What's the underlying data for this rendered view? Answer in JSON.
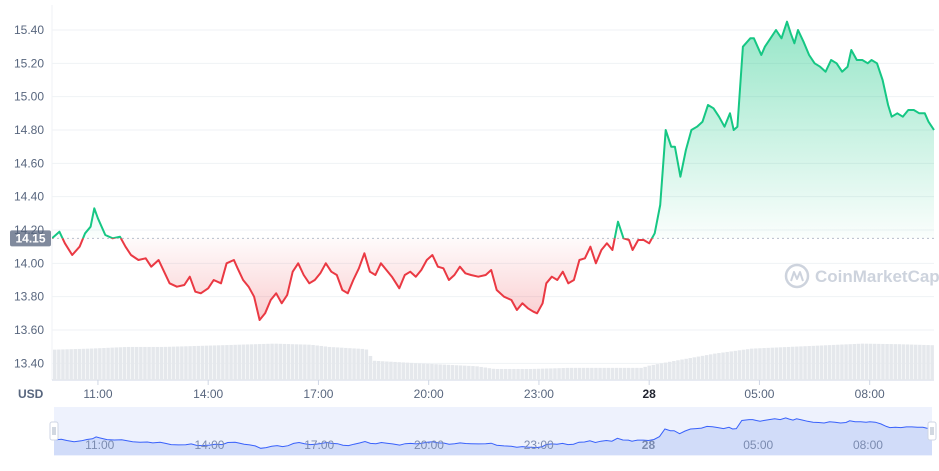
{
  "chart_data": {
    "type": "area",
    "currency_label": "USD",
    "reference": {
      "value": 14.15,
      "label": "14.15"
    },
    "ylim": [
      13.3,
      15.55
    ],
    "y_ticks": [
      "15.40",
      "15.20",
      "15.00",
      "14.80",
      "14.60",
      "14.40",
      "14.20",
      "14.00",
      "13.80",
      "13.60",
      "13.40"
    ],
    "x_ticks": [
      {
        "t": 1.25,
        "label": "11:00",
        "bold": false
      },
      {
        "t": 4.25,
        "label": "14:00",
        "bold": false
      },
      {
        "t": 7.25,
        "label": "17:00",
        "bold": false
      },
      {
        "t": 10.25,
        "label": "20:00",
        "bold": false
      },
      {
        "t": 13.25,
        "label": "23:00",
        "bold": false
      },
      {
        "t": 16.25,
        "label": "28",
        "bold": true
      },
      {
        "t": 19.25,
        "label": "05:00",
        "bold": false
      },
      {
        "t": 22.25,
        "label": "08:00",
        "bold": false
      }
    ],
    "x_range": [
      0,
      24.0
    ],
    "price": [
      [
        0.0,
        14.15
      ],
      [
        0.2,
        14.19
      ],
      [
        0.35,
        14.12
      ],
      [
        0.55,
        14.05
      ],
      [
        0.75,
        14.1
      ],
      [
        0.9,
        14.18
      ],
      [
        1.05,
        14.22
      ],
      [
        1.15,
        14.33
      ],
      [
        1.25,
        14.27
      ],
      [
        1.45,
        14.17
      ],
      [
        1.65,
        14.15
      ],
      [
        1.85,
        14.16
      ],
      [
        2.0,
        14.1
      ],
      [
        2.15,
        14.05
      ],
      [
        2.35,
        14.02
      ],
      [
        2.55,
        14.03
      ],
      [
        2.7,
        13.98
      ],
      [
        2.9,
        14.02
      ],
      [
        3.05,
        13.95
      ],
      [
        3.2,
        13.88
      ],
      [
        3.4,
        13.86
      ],
      [
        3.6,
        13.87
      ],
      [
        3.75,
        13.92
      ],
      [
        3.9,
        13.83
      ],
      [
        4.05,
        13.82
      ],
      [
        4.25,
        13.85
      ],
      [
        4.4,
        13.9
      ],
      [
        4.6,
        13.88
      ],
      [
        4.75,
        14.0
      ],
      [
        4.95,
        14.02
      ],
      [
        5.05,
        13.97
      ],
      [
        5.2,
        13.9
      ],
      [
        5.35,
        13.86
      ],
      [
        5.5,
        13.8
      ],
      [
        5.65,
        13.66
      ],
      [
        5.8,
        13.7
      ],
      [
        5.95,
        13.78
      ],
      [
        6.1,
        13.82
      ],
      [
        6.25,
        13.76
      ],
      [
        6.4,
        13.81
      ],
      [
        6.55,
        13.95
      ],
      [
        6.7,
        14.0
      ],
      [
        6.85,
        13.93
      ],
      [
        7.0,
        13.88
      ],
      [
        7.15,
        13.9
      ],
      [
        7.3,
        13.94
      ],
      [
        7.45,
        14.0
      ],
      [
        7.6,
        13.95
      ],
      [
        7.75,
        13.93
      ],
      [
        7.9,
        13.84
      ],
      [
        8.05,
        13.82
      ],
      [
        8.2,
        13.9
      ],
      [
        8.35,
        13.97
      ],
      [
        8.5,
        14.06
      ],
      [
        8.65,
        13.95
      ],
      [
        8.8,
        13.93
      ],
      [
        8.95,
        14.0
      ],
      [
        9.1,
        13.96
      ],
      [
        9.25,
        13.92
      ],
      [
        9.45,
        13.85
      ],
      [
        9.6,
        13.93
      ],
      [
        9.75,
        13.95
      ],
      [
        9.9,
        13.92
      ],
      [
        10.05,
        13.96
      ],
      [
        10.2,
        14.02
      ],
      [
        10.35,
        14.05
      ],
      [
        10.5,
        13.98
      ],
      [
        10.65,
        13.97
      ],
      [
        10.8,
        13.9
      ],
      [
        10.95,
        13.93
      ],
      [
        11.1,
        13.98
      ],
      [
        11.25,
        13.94
      ],
      [
        11.4,
        13.93
      ],
      [
        11.6,
        13.92
      ],
      [
        11.8,
        13.93
      ],
      [
        11.95,
        13.96
      ],
      [
        12.1,
        13.84
      ],
      [
        12.3,
        13.8
      ],
      [
        12.5,
        13.78
      ],
      [
        12.65,
        13.72
      ],
      [
        12.8,
        13.76
      ],
      [
        12.95,
        13.73
      ],
      [
        13.1,
        13.71
      ],
      [
        13.2,
        13.7
      ],
      [
        13.35,
        13.76
      ],
      [
        13.45,
        13.88
      ],
      [
        13.6,
        13.92
      ],
      [
        13.75,
        13.9
      ],
      [
        13.9,
        13.95
      ],
      [
        14.05,
        13.88
      ],
      [
        14.2,
        13.9
      ],
      [
        14.35,
        14.02
      ],
      [
        14.5,
        14.03
      ],
      [
        14.65,
        14.1
      ],
      [
        14.8,
        14.0
      ],
      [
        14.95,
        14.08
      ],
      [
        15.1,
        14.12
      ],
      [
        15.25,
        14.08
      ],
      [
        15.4,
        14.25
      ],
      [
        15.55,
        14.15
      ],
      [
        15.7,
        14.14
      ],
      [
        15.8,
        14.08
      ],
      [
        15.95,
        14.14
      ],
      [
        16.1,
        14.14
      ],
      [
        16.25,
        14.12
      ],
      [
        16.4,
        14.18
      ],
      [
        16.55,
        14.35
      ],
      [
        16.7,
        14.8
      ],
      [
        16.85,
        14.7
      ],
      [
        16.95,
        14.7
      ],
      [
        17.1,
        14.52
      ],
      [
        17.25,
        14.68
      ],
      [
        17.4,
        14.8
      ],
      [
        17.55,
        14.82
      ],
      [
        17.7,
        14.85
      ],
      [
        17.85,
        14.95
      ],
      [
        18.0,
        14.93
      ],
      [
        18.15,
        14.88
      ],
      [
        18.3,
        14.82
      ],
      [
        18.45,
        14.9
      ],
      [
        18.55,
        14.8
      ],
      [
        18.65,
        14.82
      ],
      [
        18.8,
        15.3
      ],
      [
        19.0,
        15.35
      ],
      [
        19.1,
        15.35
      ],
      [
        19.2,
        15.3
      ],
      [
        19.3,
        15.25
      ],
      [
        19.4,
        15.3
      ],
      [
        19.55,
        15.35
      ],
      [
        19.7,
        15.4
      ],
      [
        19.85,
        15.35
      ],
      [
        20.0,
        15.45
      ],
      [
        20.1,
        15.38
      ],
      [
        20.2,
        15.32
      ],
      [
        20.3,
        15.4
      ],
      [
        20.45,
        15.33
      ],
      [
        20.6,
        15.25
      ],
      [
        20.75,
        15.2
      ],
      [
        20.9,
        15.18
      ],
      [
        21.05,
        15.15
      ],
      [
        21.2,
        15.22
      ],
      [
        21.35,
        15.2
      ],
      [
        21.5,
        15.15
      ],
      [
        21.65,
        15.18
      ],
      [
        21.75,
        15.28
      ],
      [
        21.9,
        15.22
      ],
      [
        22.05,
        15.22
      ],
      [
        22.2,
        15.2
      ],
      [
        22.3,
        15.22
      ],
      [
        22.45,
        15.2
      ],
      [
        22.6,
        15.1
      ],
      [
        22.75,
        14.95
      ],
      [
        22.85,
        14.88
      ],
      [
        23.0,
        14.9
      ],
      [
        23.15,
        14.88
      ],
      [
        23.3,
        14.92
      ],
      [
        23.45,
        14.92
      ],
      [
        23.6,
        14.9
      ],
      [
        23.75,
        14.9
      ],
      [
        23.85,
        14.85
      ],
      [
        24.0,
        14.8
      ]
    ],
    "volume": [
      [
        0.0,
        0.55
      ],
      [
        1.0,
        0.57
      ],
      [
        2.0,
        0.6
      ],
      [
        3.0,
        0.6
      ],
      [
        4.0,
        0.62
      ],
      [
        5.0,
        0.64
      ],
      [
        6.0,
        0.66
      ],
      [
        7.0,
        0.64
      ],
      [
        7.5,
        0.6
      ],
      [
        8.5,
        0.56
      ],
      [
        8.7,
        0.35
      ],
      [
        10.0,
        0.3
      ],
      [
        11.5,
        0.25
      ],
      [
        12.0,
        0.2
      ],
      [
        13.0,
        0.2
      ],
      [
        14.0,
        0.22
      ],
      [
        15.0,
        0.22
      ],
      [
        16.0,
        0.22
      ],
      [
        16.2,
        0.26
      ],
      [
        17.0,
        0.36
      ],
      [
        18.0,
        0.48
      ],
      [
        19.0,
        0.57
      ],
      [
        20.0,
        0.6
      ],
      [
        21.0,
        0.63
      ],
      [
        22.0,
        0.66
      ],
      [
        23.0,
        0.65
      ],
      [
        24.0,
        0.63
      ]
    ],
    "colors": {
      "up": "#16c784",
      "down": "#ea3943",
      "volume": "#e5e8ec",
      "navigator_fill": "#dde7fb",
      "navigator_line": "#3861fb",
      "grid": "#eff2f5",
      "text": "#58667e"
    }
  },
  "watermark": {
    "text": "CoinMarketCap"
  }
}
